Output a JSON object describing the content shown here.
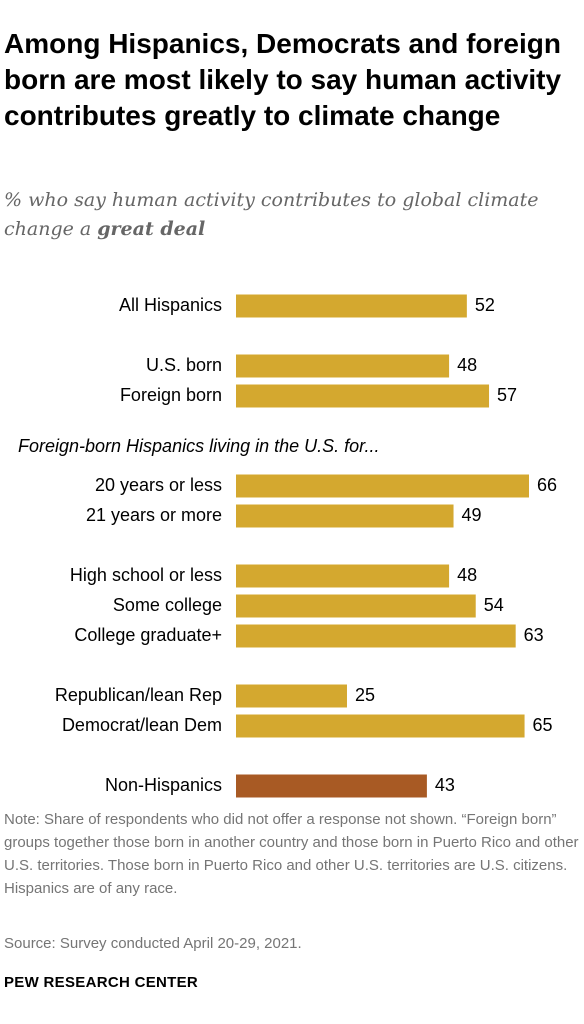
{
  "title": "Among Hispanics, Democrats and foreign born are most likely to say human activity contributes greatly to climate change",
  "subtitle_prefix": "% who say human activity contributes to global climate change a ",
  "subtitle_emphasis": "great deal",
  "note": "Note: Share of respondents who did not offer a response not shown. “Foreign born” groups together those born in another country and those born in Puerto Rico and other U.S. territories. Those born in Puerto Rico and other U.S. territories are U.S. citizens. Hispanics are of any race.",
  "source": "Source: Survey conducted April 20-29, 2021.",
  "brand": "PEW RESEARCH CENTER",
  "colors": {
    "hispanic_bar": "#D4A82F",
    "non_hispanic_bar": "#A85A24",
    "label": "#000000",
    "subtitle": "#666666",
    "note": "#757575"
  },
  "chart_data": {
    "type": "bar",
    "orientation": "horizontal",
    "section_label": "Foreign-born Hispanics living in the U.S. for...",
    "categories": [
      "All Hispanics",
      "U.S. born",
      "Foreign born",
      "20 years or less",
      "21 years or more",
      "High school or less",
      "Some college",
      "College graduate+",
      "Republican/lean Rep",
      "Democrat/lean Dem",
      "Non-Hispanics"
    ],
    "values": [
      52,
      48,
      57,
      66,
      49,
      48,
      54,
      63,
      25,
      65,
      43
    ],
    "bar_colors": [
      "#D4A82F",
      "#D4A82F",
      "#D4A82F",
      "#D4A82F",
      "#D4A82F",
      "#D4A82F",
      "#D4A82F",
      "#D4A82F",
      "#D4A82F",
      "#D4A82F",
      "#A85A24"
    ],
    "xlim": [
      0,
      66
    ],
    "grid": false,
    "legend": "none"
  }
}
